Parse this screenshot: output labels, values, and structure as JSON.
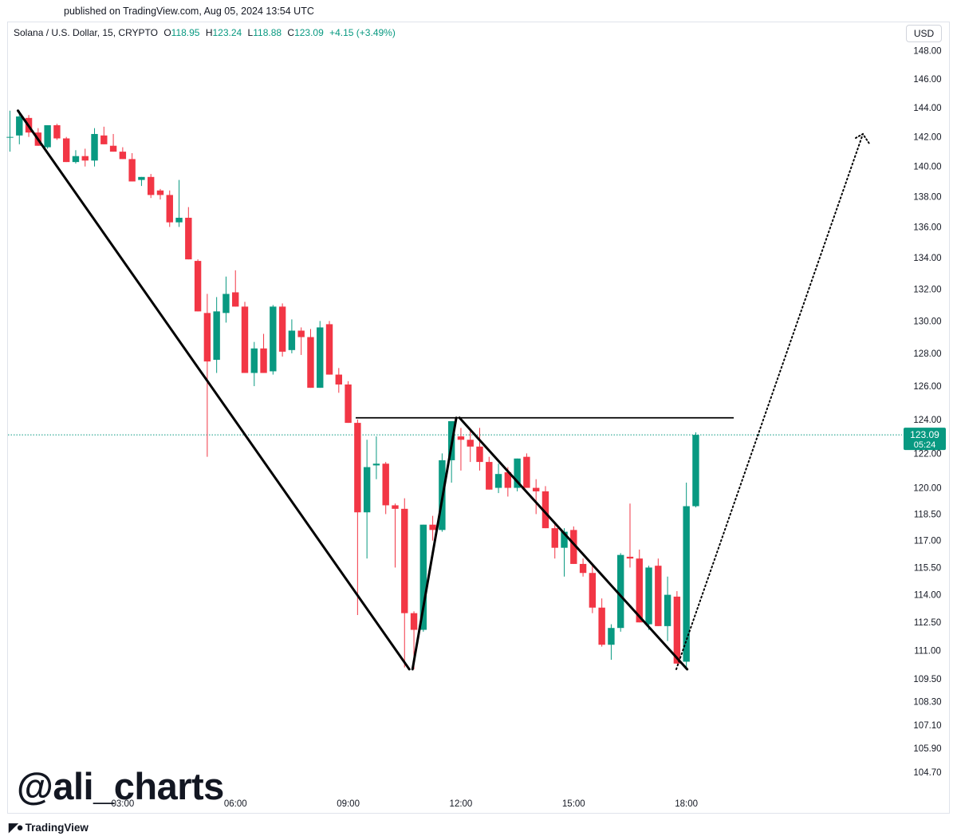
{
  "header": {
    "published_text": "published on TradingView.com, Aug 05, 2024 13:54 UTC"
  },
  "legend": {
    "symbol": "Solana / U.S. Dollar, 15, CRYPTO",
    "open_label": "O",
    "open": "118.95",
    "high_label": "H",
    "high": "123.24",
    "low_label": "L",
    "low": "118.88",
    "close_label": "C",
    "close": "123.09",
    "change": "+4.15 (+3.49%)"
  },
  "currency": "USD",
  "watermark": "@ali_charts",
  "brand": {
    "name": "TradingView",
    "logo": "tradingview-logo-icon"
  },
  "colors": {
    "up": "#089981",
    "down": "#f23645",
    "drawing": "#000000",
    "price_line": "#089981"
  },
  "price_badge": {
    "price": "123.09",
    "countdown": "05:24"
  },
  "chart_data": {
    "type": "candlestick",
    "interval": "15",
    "y_scale": "log",
    "x_tick_labels": [
      "03:00",
      "06:00",
      "09:00",
      "12:00",
      "15:00",
      "18:00"
    ],
    "y_tick_labels": [
      "148.00",
      "146.00",
      "144.00",
      "142.00",
      "140.00",
      "138.00",
      "136.00",
      "134.00",
      "132.00",
      "130.00",
      "128.00",
      "126.00",
      "124.00",
      "122.00",
      "120.00",
      "118.50",
      "117.00",
      "115.50",
      "114.00",
      "112.50",
      "111.00",
      "109.50",
      "108.30",
      "107.10",
      "105.90",
      "104.70"
    ],
    "last_price": 123.09,
    "candles": [
      {
        "t": "00:00",
        "o": 142.0,
        "h": 143.8,
        "l": 141.0,
        "c": 142.0
      },
      {
        "t": "00:15",
        "o": 142.1,
        "h": 143.8,
        "l": 141.5,
        "c": 143.4
      },
      {
        "t": "00:30",
        "o": 143.3,
        "h": 143.5,
        "l": 142.0,
        "c": 142.3
      },
      {
        "t": "00:45",
        "o": 142.3,
        "h": 142.6,
        "l": 141.4,
        "c": 141.4
      },
      {
        "t": "01:00",
        "o": 141.3,
        "h": 142.8,
        "l": 141.2,
        "c": 142.8
      },
      {
        "t": "01:15",
        "o": 142.8,
        "h": 142.9,
        "l": 141.8,
        "c": 141.9
      },
      {
        "t": "01:30",
        "o": 141.9,
        "h": 142.0,
        "l": 140.3,
        "c": 140.3
      },
      {
        "t": "01:45",
        "o": 140.3,
        "h": 141.1,
        "l": 140.2,
        "c": 140.7
      },
      {
        "t": "02:00",
        "o": 140.7,
        "h": 141.2,
        "l": 140.0,
        "c": 140.4
      },
      {
        "t": "02:15",
        "o": 140.4,
        "h": 142.6,
        "l": 140.0,
        "c": 142.2
      },
      {
        "t": "02:30",
        "o": 142.1,
        "h": 142.7,
        "l": 141.5,
        "c": 141.5
      },
      {
        "t": "02:45",
        "o": 141.4,
        "h": 142.2,
        "l": 141.0,
        "c": 141.0
      },
      {
        "t": "03:00",
        "o": 141.0,
        "h": 141.3,
        "l": 140.5,
        "c": 140.5
      },
      {
        "t": "03:15",
        "o": 140.5,
        "h": 140.9,
        "l": 139.0,
        "c": 139.0
      },
      {
        "t": "03:30",
        "o": 139.1,
        "h": 139.3,
        "l": 138.7,
        "c": 139.3
      },
      {
        "t": "03:45",
        "o": 139.3,
        "h": 139.5,
        "l": 137.9,
        "c": 138.1
      },
      {
        "t": "04:00",
        "o": 138.4,
        "h": 138.5,
        "l": 137.8,
        "c": 138.1
      },
      {
        "t": "04:15",
        "o": 138.1,
        "h": 138.4,
        "l": 136.0,
        "c": 136.3
      },
      {
        "t": "04:30",
        "o": 136.3,
        "h": 139.1,
        "l": 136.0,
        "c": 136.6
      },
      {
        "t": "04:45",
        "o": 136.6,
        "h": 137.3,
        "l": 133.9,
        "c": 133.9
      },
      {
        "t": "05:00",
        "o": 133.8,
        "h": 133.9,
        "l": 130.6,
        "c": 130.6
      },
      {
        "t": "05:15",
        "o": 130.5,
        "h": 131.7,
        "l": 121.8,
        "c": 127.5
      },
      {
        "t": "05:30",
        "o": 127.6,
        "h": 131.5,
        "l": 126.8,
        "c": 130.6
      },
      {
        "t": "05:45",
        "o": 130.5,
        "h": 132.8,
        "l": 129.9,
        "c": 131.7
      },
      {
        "t": "06:00",
        "o": 131.8,
        "h": 133.2,
        "l": 130.9,
        "c": 130.9
      },
      {
        "t": "06:15",
        "o": 130.9,
        "h": 131.2,
        "l": 126.8,
        "c": 126.8
      },
      {
        "t": "06:30",
        "o": 126.8,
        "h": 128.7,
        "l": 126.0,
        "c": 128.3
      },
      {
        "t": "06:45",
        "o": 128.3,
        "h": 129.2,
        "l": 126.8,
        "c": 126.8
      },
      {
        "t": "07:00",
        "o": 126.9,
        "h": 131.0,
        "l": 126.7,
        "c": 130.9
      },
      {
        "t": "07:15",
        "o": 130.9,
        "h": 131.1,
        "l": 127.8,
        "c": 128.1
      },
      {
        "t": "07:30",
        "o": 128.2,
        "h": 130.1,
        "l": 128.0,
        "c": 129.4
      },
      {
        "t": "07:45",
        "o": 129.4,
        "h": 129.6,
        "l": 127.9,
        "c": 129.0
      },
      {
        "t": "08:00",
        "o": 129.0,
        "h": 129.5,
        "l": 125.9,
        "c": 125.9
      },
      {
        "t": "08:15",
        "o": 125.9,
        "h": 130.0,
        "l": 125.9,
        "c": 129.6
      },
      {
        "t": "08:30",
        "o": 129.8,
        "h": 130.0,
        "l": 126.7,
        "c": 126.7
      },
      {
        "t": "08:45",
        "o": 126.7,
        "h": 127.1,
        "l": 125.6,
        "c": 126.1
      },
      {
        "t": "09:00",
        "o": 126.1,
        "h": 126.3,
        "l": 123.8,
        "c": 123.8
      },
      {
        "t": "09:15",
        "o": 123.8,
        "h": 124.0,
        "l": 112.9,
        "c": 118.6
      },
      {
        "t": "09:30",
        "o": 118.6,
        "h": 122.8,
        "l": 116.0,
        "c": 121.2
      },
      {
        "t": "09:45",
        "o": 121.3,
        "h": 123.0,
        "l": 120.5,
        "c": 121.4
      },
      {
        "t": "10:00",
        "o": 121.4,
        "h": 121.5,
        "l": 118.5,
        "c": 119.0
      },
      {
        "t": "10:15",
        "o": 119.0,
        "h": 119.1,
        "l": 115.5,
        "c": 118.8
      },
      {
        "t": "10:30",
        "o": 118.8,
        "h": 119.4,
        "l": 110.1,
        "c": 113.0
      },
      {
        "t": "10:45",
        "o": 113.0,
        "h": 113.1,
        "l": 110.0,
        "c": 112.1
      },
      {
        "t": "11:00",
        "o": 112.1,
        "h": 117.9,
        "l": 112.0,
        "c": 117.9
      },
      {
        "t": "11:15",
        "o": 117.9,
        "h": 118.4,
        "l": 117.0,
        "c": 117.6
      },
      {
        "t": "11:30",
        "o": 117.6,
        "h": 122.0,
        "l": 117.5,
        "c": 121.6
      },
      {
        "t": "11:45",
        "o": 121.6,
        "h": 123.9,
        "l": 120.3,
        "c": 123.9
      },
      {
        "t": "12:00",
        "o": 123.0,
        "h": 123.5,
        "l": 121.0,
        "c": 122.8
      },
      {
        "t": "12:15",
        "o": 122.8,
        "h": 123.3,
        "l": 121.5,
        "c": 122.4
      },
      {
        "t": "12:30",
        "o": 122.4,
        "h": 123.5,
        "l": 121.0,
        "c": 121.5
      },
      {
        "t": "12:45",
        "o": 121.5,
        "h": 121.8,
        "l": 119.9,
        "c": 119.9
      },
      {
        "t": "13:00",
        "o": 120.0,
        "h": 121.4,
        "l": 119.7,
        "c": 120.8
      },
      {
        "t": "13:15",
        "o": 120.9,
        "h": 121.2,
        "l": 119.5,
        "c": 120.0
      },
      {
        "t": "13:30",
        "o": 120.0,
        "h": 121.7,
        "l": 119.8,
        "c": 121.7
      },
      {
        "t": "13:45",
        "o": 121.8,
        "h": 122.0,
        "l": 120.0,
        "c": 120.0
      },
      {
        "t": "14:00",
        "o": 120.0,
        "h": 120.5,
        "l": 118.5,
        "c": 119.8
      },
      {
        "t": "14:15",
        "o": 119.8,
        "h": 120.1,
        "l": 117.7,
        "c": 117.7
      },
      {
        "t": "14:30",
        "o": 117.7,
        "h": 118.0,
        "l": 116.0,
        "c": 116.6
      },
      {
        "t": "14:45",
        "o": 116.6,
        "h": 117.7,
        "l": 115.0,
        "c": 117.5
      },
      {
        "t": "15:00",
        "o": 117.6,
        "h": 117.8,
        "l": 115.7,
        "c": 115.7
      },
      {
        "t": "15:15",
        "o": 115.7,
        "h": 116.0,
        "l": 115.0,
        "c": 115.2
      },
      {
        "t": "15:30",
        "o": 115.2,
        "h": 115.7,
        "l": 113.0,
        "c": 113.3
      },
      {
        "t": "15:45",
        "o": 113.3,
        "h": 113.8,
        "l": 111.2,
        "c": 111.3
      },
      {
        "t": "16:00",
        "o": 111.3,
        "h": 112.4,
        "l": 110.5,
        "c": 112.2
      },
      {
        "t": "16:15",
        "o": 112.2,
        "h": 116.3,
        "l": 112.0,
        "c": 116.2
      },
      {
        "t": "16:30",
        "o": 116.1,
        "h": 119.1,
        "l": 115.5,
        "c": 116.0
      },
      {
        "t": "16:45",
        "o": 116.0,
        "h": 116.5,
        "l": 112.5,
        "c": 112.5
      },
      {
        "t": "17:00",
        "o": 112.4,
        "h": 115.6,
        "l": 112.1,
        "c": 115.5
      },
      {
        "t": "17:15",
        "o": 115.6,
        "h": 116.0,
        "l": 112.3,
        "c": 112.3
      },
      {
        "t": "17:30",
        "o": 112.3,
        "h": 115.0,
        "l": 111.5,
        "c": 114.0
      },
      {
        "t": "17:45",
        "o": 113.9,
        "h": 114.2,
        "l": 110.3,
        "c": 110.3
      },
      {
        "t": "18:00",
        "o": 110.4,
        "h": 120.3,
        "l": 110.0,
        "c": 118.95
      },
      {
        "t": "18:15",
        "o": 118.95,
        "h": 123.24,
        "l": 118.88,
        "c": 123.09
      }
    ],
    "drawings": {
      "trend_line_1": [
        [
          143.8,
          "00:00"
        ],
        [
          110.0,
          "10:30"
        ]
      ],
      "trend_line_2": [
        [
          110.0,
          "10:30"
        ],
        [
          124.1,
          "11:45"
        ]
      ],
      "trend_line_3": [
        [
          124.1,
          "11:45"
        ],
        [
          110.0,
          "18:00"
        ]
      ],
      "resistance": 124.1,
      "projection_target": 142.2
    }
  }
}
